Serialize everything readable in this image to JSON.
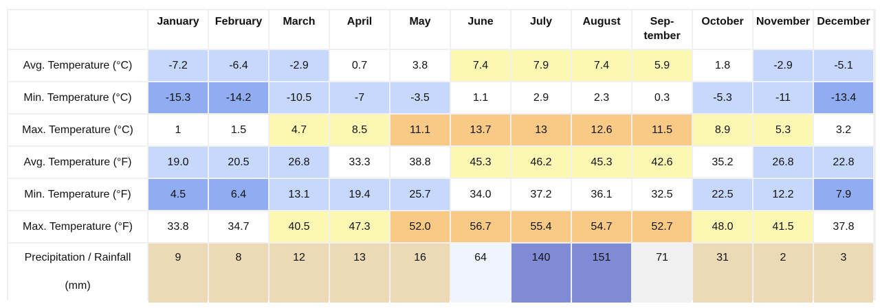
{
  "months": [
    "January",
    "February",
    "March",
    "April",
    "May",
    "June",
    "July",
    "August",
    "Sep-tember",
    "October",
    "November",
    "December"
  ],
  "colors": {
    "white": "#ffffff",
    "lightblue": "#c6d8fb",
    "blue": "#8fadf0",
    "lightyellow": "#fcf8b3",
    "orange": "#f8ca86",
    "tan": "#ecd9b5",
    "paleblue": "#eef5ff",
    "purple": "#7f8bd4",
    "grey": "#f0f0f0"
  },
  "rows": [
    {
      "label": "Avg. Temperature (°C)",
      "values": [
        "-7.2",
        "-6.4",
        "-2.9",
        "0.7",
        "3.8",
        "7.4",
        "7.9",
        "7.4",
        "5.9",
        "1.8",
        "-2.9",
        "-5.1"
      ],
      "colors": [
        "lightblue",
        "lightblue",
        "lightblue",
        "white",
        "white",
        "lightyellow",
        "lightyellow",
        "lightyellow",
        "lightyellow",
        "white",
        "lightblue",
        "lightblue"
      ]
    },
    {
      "label": "Min. Temperature (°C)",
      "values": [
        "-15.3",
        "-14.2",
        "-10.5",
        "-7",
        "-3.5",
        "1.1",
        "2.9",
        "2.3",
        "0.3",
        "-5.3",
        "-11",
        "-13.4"
      ],
      "colors": [
        "blue",
        "blue",
        "lightblue",
        "lightblue",
        "lightblue",
        "white",
        "white",
        "white",
        "white",
        "lightblue",
        "lightblue",
        "blue"
      ]
    },
    {
      "label": "Max. Temperature (°C)",
      "values": [
        "1",
        "1.5",
        "4.7",
        "8.5",
        "11.1",
        "13.7",
        "13",
        "12.6",
        "11.5",
        "8.9",
        "5.3",
        "3.2"
      ],
      "colors": [
        "white",
        "white",
        "lightyellow",
        "lightyellow",
        "orange",
        "orange",
        "orange",
        "orange",
        "orange",
        "lightyellow",
        "lightyellow",
        "white"
      ]
    },
    {
      "label": "Avg. Temperature (°F)",
      "values": [
        "19.0",
        "20.5",
        "26.8",
        "33.3",
        "38.8",
        "45.3",
        "46.2",
        "45.3",
        "42.6",
        "35.2",
        "26.8",
        "22.8"
      ],
      "colors": [
        "lightblue",
        "lightblue",
        "lightblue",
        "white",
        "white",
        "lightyellow",
        "lightyellow",
        "lightyellow",
        "lightyellow",
        "white",
        "lightblue",
        "lightblue"
      ]
    },
    {
      "label": "Min. Temperature (°F)",
      "values": [
        "4.5",
        "6.4",
        "13.1",
        "19.4",
        "25.7",
        "34.0",
        "37.2",
        "36.1",
        "32.5",
        "22.5",
        "12.2",
        "7.9"
      ],
      "colors": [
        "blue",
        "blue",
        "lightblue",
        "lightblue",
        "lightblue",
        "white",
        "white",
        "white",
        "white",
        "lightblue",
        "lightblue",
        "blue"
      ]
    },
    {
      "label": "Max. Temperature (°F)",
      "values": [
        "33.8",
        "34.7",
        "40.5",
        "47.3",
        "52.0",
        "56.7",
        "55.4",
        "54.7",
        "52.7",
        "48.0",
        "41.5",
        "37.8"
      ],
      "colors": [
        "white",
        "white",
        "lightyellow",
        "lightyellow",
        "orange",
        "orange",
        "orange",
        "orange",
        "orange",
        "lightyellow",
        "lightyellow",
        "white"
      ]
    }
  ],
  "precip": {
    "label_line1": "Precipitation / Rainfall",
    "label_line2": "(mm)",
    "values": [
      "9",
      "8",
      "12",
      "13",
      "16",
      "64",
      "140",
      "151",
      "71",
      "31",
      "2",
      "3"
    ],
    "colors": [
      "tan",
      "tan",
      "tan",
      "tan",
      "tan",
      "paleblue",
      "purple",
      "purple",
      "grey",
      "tan",
      "tan",
      "tan"
    ]
  }
}
